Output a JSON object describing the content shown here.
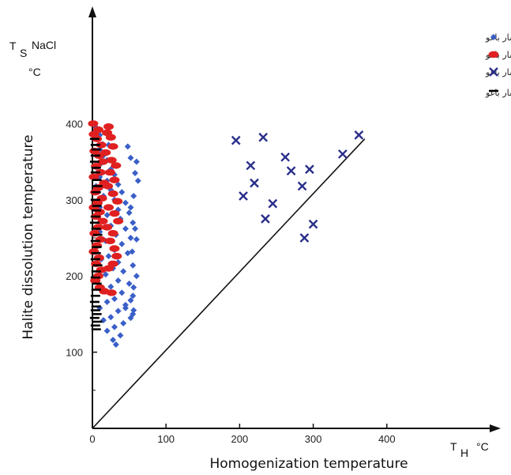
{
  "chart_data": {
    "type": "scatter",
    "xlabel": "Homogenization temperature",
    "ylabel": "Halite dissolution temperature",
    "x_unit_main": "T",
    "x_unit_sub": "H",
    "x_unit_deg": "°C",
    "y_unit_main": "T",
    "y_unit_sub": "S",
    "y_unit_sup": "NaCl",
    "y_unit_deg": "°C",
    "xlim": [
      0,
      450
    ],
    "ylim": [
      0,
      450
    ],
    "xticks": [
      "0",
      "100",
      "200",
      "300",
      "400"
    ],
    "xtick_values": [
      0,
      100,
      200,
      300,
      400
    ],
    "yticks": [
      "100",
      "200",
      "300",
      "400"
    ],
    "ytick_values": [
      100,
      200,
      300,
      400
    ],
    "legend_position": "top-right",
    "reference_line": {
      "x": [
        0,
        370
      ],
      "y": [
        0,
        380
      ]
    },
    "series": [
      {
        "name": "سیالات درگیر سه فازی هالیت داردر کانی کوارتز در کانسار باغو",
        "marker": "plus-diamond",
        "color": "#3a5fc8",
        "points": [
          [
            5,
            395
          ],
          [
            7,
            389
          ],
          [
            10,
            385
          ],
          [
            5,
            380
          ],
          [
            14,
            373
          ],
          [
            10,
            366
          ],
          [
            15,
            358
          ],
          [
            20,
            352
          ],
          [
            12,
            348
          ],
          [
            5,
            343
          ],
          [
            25,
            340
          ],
          [
            30,
            333
          ],
          [
            10,
            330
          ],
          [
            20,
            325
          ],
          [
            35,
            320
          ],
          [
            5,
            318
          ],
          [
            25,
            313
          ],
          [
            40,
            310
          ],
          [
            15,
            305
          ],
          [
            30,
            300
          ],
          [
            45,
            296
          ],
          [
            10,
            290
          ],
          [
            35,
            287
          ],
          [
            50,
            283
          ],
          [
            20,
            280
          ],
          [
            38,
            275
          ],
          [
            55,
            270
          ],
          [
            25,
            266
          ],
          [
            45,
            262
          ],
          [
            10,
            258
          ],
          [
            32,
            254
          ],
          [
            52,
            250
          ],
          [
            18,
            246
          ],
          [
            40,
            242
          ],
          [
            5,
            238
          ],
          [
            30,
            234
          ],
          [
            48,
            230
          ],
          [
            22,
            226
          ],
          [
            12,
            222
          ],
          [
            35,
            218
          ],
          [
            55,
            214
          ],
          [
            28,
            210
          ],
          [
            42,
            206
          ],
          [
            18,
            202
          ],
          [
            8,
            198
          ],
          [
            35,
            194
          ],
          [
            50,
            190
          ],
          [
            25,
            186
          ],
          [
            15,
            182
          ],
          [
            40,
            178
          ],
          [
            55,
            174
          ],
          [
            30,
            170
          ],
          [
            20,
            166
          ],
          [
            45,
            162
          ],
          [
            10,
            158
          ],
          [
            35,
            154
          ],
          [
            55,
            150
          ],
          [
            25,
            146
          ],
          [
            15,
            142
          ],
          [
            42,
            138
          ],
          [
            30,
            133
          ],
          [
            20,
            128
          ],
          [
            38,
            122
          ],
          [
            28,
            116
          ],
          [
            32,
            110
          ],
          [
            45,
            158
          ],
          [
            60,
            350
          ],
          [
            58,
            335
          ],
          [
            52,
            355
          ],
          [
            48,
            370
          ],
          [
            62,
            325
          ],
          [
            56,
            305
          ],
          [
            52,
            290
          ],
          [
            58,
            262
          ],
          [
            60,
            248
          ],
          [
            54,
            232
          ],
          [
            60,
            200
          ],
          [
            56,
            185
          ],
          [
            52,
            168
          ],
          [
            56,
            155
          ],
          [
            52,
            145
          ],
          [
            22,
            372
          ]
        ]
      },
      {
        "name": "سیالات درگیر چندفازی هالیت- سیلویت داردر کانی کوارتز در کانسار باغو",
        "marker": "filled-oval",
        "color": "#e02020",
        "points": [
          [
            1,
            400
          ],
          [
            8,
            392
          ],
          [
            2,
            386
          ],
          [
            6,
            380
          ],
          [
            12,
            372
          ],
          [
            3,
            364
          ],
          [
            9,
            358
          ],
          [
            14,
            350
          ],
          [
            5,
            344
          ],
          [
            11,
            336
          ],
          [
            2,
            330
          ],
          [
            16,
            322
          ],
          [
            8,
            316
          ],
          [
            4,
            310
          ],
          [
            13,
            302
          ],
          [
            7,
            296
          ],
          [
            2,
            290
          ],
          [
            10,
            284
          ],
          [
            5,
            278
          ],
          [
            14,
            272
          ],
          [
            8,
            264
          ],
          [
            3,
            256
          ],
          [
            11,
            248
          ],
          [
            6,
            240
          ],
          [
            2,
            232
          ],
          [
            9,
            224
          ],
          [
            5,
            216
          ],
          [
            12,
            208
          ],
          [
            8,
            200
          ],
          [
            4,
            194
          ],
          [
            20,
            388
          ],
          [
            25,
            382
          ],
          [
            22,
            396
          ],
          [
            28,
            370
          ],
          [
            18,
            362
          ],
          [
            26,
            352
          ],
          [
            32,
            345
          ],
          [
            24,
            336
          ],
          [
            30,
            326
          ],
          [
            21,
            318
          ],
          [
            28,
            308
          ],
          [
            34,
            298
          ],
          [
            22,
            290
          ],
          [
            30,
            282
          ],
          [
            35,
            272
          ],
          [
            20,
            264
          ],
          [
            28,
            256
          ],
          [
            24,
            246
          ],
          [
            30,
            236
          ],
          [
            33,
            226
          ],
          [
            28,
            216
          ],
          [
            22,
            210
          ],
          [
            10,
            185
          ],
          [
            16,
            180
          ],
          [
            26,
            178
          ]
        ]
      },
      {
        "name": "سیالات درگیر چندفازی هالیت- سیلویت – اپک داردر کانی کوارتز در کانسار باغو",
        "marker": "x",
        "color": "#2a2f8a",
        "points": [
          [
            195,
            378
          ],
          [
            205,
            305
          ],
          [
            215,
            345
          ],
          [
            220,
            322
          ],
          [
            232,
            382
          ],
          [
            235,
            275
          ],
          [
            245,
            295
          ],
          [
            262,
            356
          ],
          [
            270,
            338
          ],
          [
            285,
            318
          ],
          [
            288,
            250
          ],
          [
            295,
            340
          ],
          [
            300,
            268
          ],
          [
            340,
            360
          ],
          [
            362,
            385
          ]
        ]
      },
      {
        "name": "سیالات درگیر چندفازی هالیت- اپک داردر کانی کوارتز در کانسار باغو",
        "marker": "dash",
        "color": "#000000",
        "points": [
          [
            2,
            380
          ],
          [
            3,
            372
          ],
          [
            4,
            366
          ],
          [
            3,
            358
          ],
          [
            2,
            350
          ],
          [
            4,
            342
          ],
          [
            3,
            336
          ],
          [
            5,
            326
          ],
          [
            6,
            318
          ],
          [
            4,
            310
          ],
          [
            3,
            300
          ],
          [
            5,
            292
          ],
          [
            4,
            286
          ],
          [
            3,
            278
          ],
          [
            2,
            270
          ],
          [
            4,
            262
          ],
          [
            6,
            254
          ],
          [
            3,
            246
          ],
          [
            5,
            238
          ],
          [
            4,
            230
          ],
          [
            3,
            222
          ],
          [
            6,
            214
          ],
          [
            4,
            206
          ],
          [
            3,
            198
          ],
          [
            5,
            190
          ],
          [
            4,
            182
          ],
          [
            3,
            174
          ],
          [
            2,
            166
          ],
          [
            4,
            160
          ],
          [
            3,
            155
          ],
          [
            5,
            150
          ],
          [
            2,
            145
          ],
          [
            6,
            140
          ],
          [
            3,
            135
          ],
          [
            4,
            130
          ]
        ]
      }
    ]
  }
}
